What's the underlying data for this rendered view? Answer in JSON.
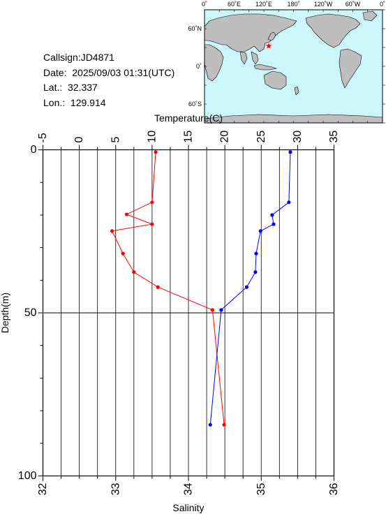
{
  "meta": {
    "callsign": "Callsign:JD4871",
    "date": "Date:  2025/09/03 01:31(UTC)",
    "lat": "Lat.:  32.337",
    "lon": "Lon.:  129.914"
  },
  "map": {
    "top_labels": [
      "0˚",
      "60˚E",
      "120˚E",
      "180˚",
      "120˚W",
      "60˚W",
      "0˚"
    ],
    "side_labels": [
      "60˚N",
      "0˚",
      "60˚S"
    ],
    "station": {
      "lat": 32.337,
      "lon": 129.914
    },
    "colors": {
      "ocean": "#ccf6fb",
      "land": "#bebebe",
      "marker": "#ff0000"
    }
  },
  "chart_data": {
    "type": "line",
    "x_top": {
      "label": "Temperature(C)",
      "range": [
        -5,
        35
      ],
      "ticks": [
        -5,
        0,
        5,
        10,
        15,
        20,
        25,
        30,
        35
      ]
    },
    "x_bottom": {
      "label": "Salinity",
      "range": [
        32,
        36
      ],
      "ticks": [
        32,
        33,
        34,
        35,
        36
      ]
    },
    "y": {
      "label": "Depth(m)",
      "range": [
        0,
        100
      ],
      "ticks": [
        0,
        50,
        100
      ],
      "inverted": true
    },
    "grid": "vertical",
    "series": [
      {
        "axis": "temperature",
        "color": "#ff0000",
        "points": [
          [
            10.5,
            0.7
          ],
          [
            10.0,
            16.1
          ],
          [
            6.5,
            19.8
          ],
          [
            10.0,
            22.8
          ],
          [
            4.5,
            24.9
          ],
          [
            6.0,
            31.8
          ],
          [
            7.5,
            37.5
          ],
          [
            10.8,
            42.1
          ],
          [
            18.3,
            49.1
          ],
          [
            19.9,
            84.3
          ]
        ]
      },
      {
        "axis": "salinity",
        "color": "#0000ff",
        "points": [
          [
            35.4,
            0.7
          ],
          [
            35.38,
            16.1
          ],
          [
            35.15,
            20.0
          ],
          [
            35.17,
            22.8
          ],
          [
            34.99,
            24.9
          ],
          [
            34.93,
            31.8
          ],
          [
            34.92,
            37.5
          ],
          [
            34.8,
            42.1
          ],
          [
            34.45,
            49.1
          ],
          [
            34.3,
            84.3
          ]
        ]
      }
    ]
  }
}
